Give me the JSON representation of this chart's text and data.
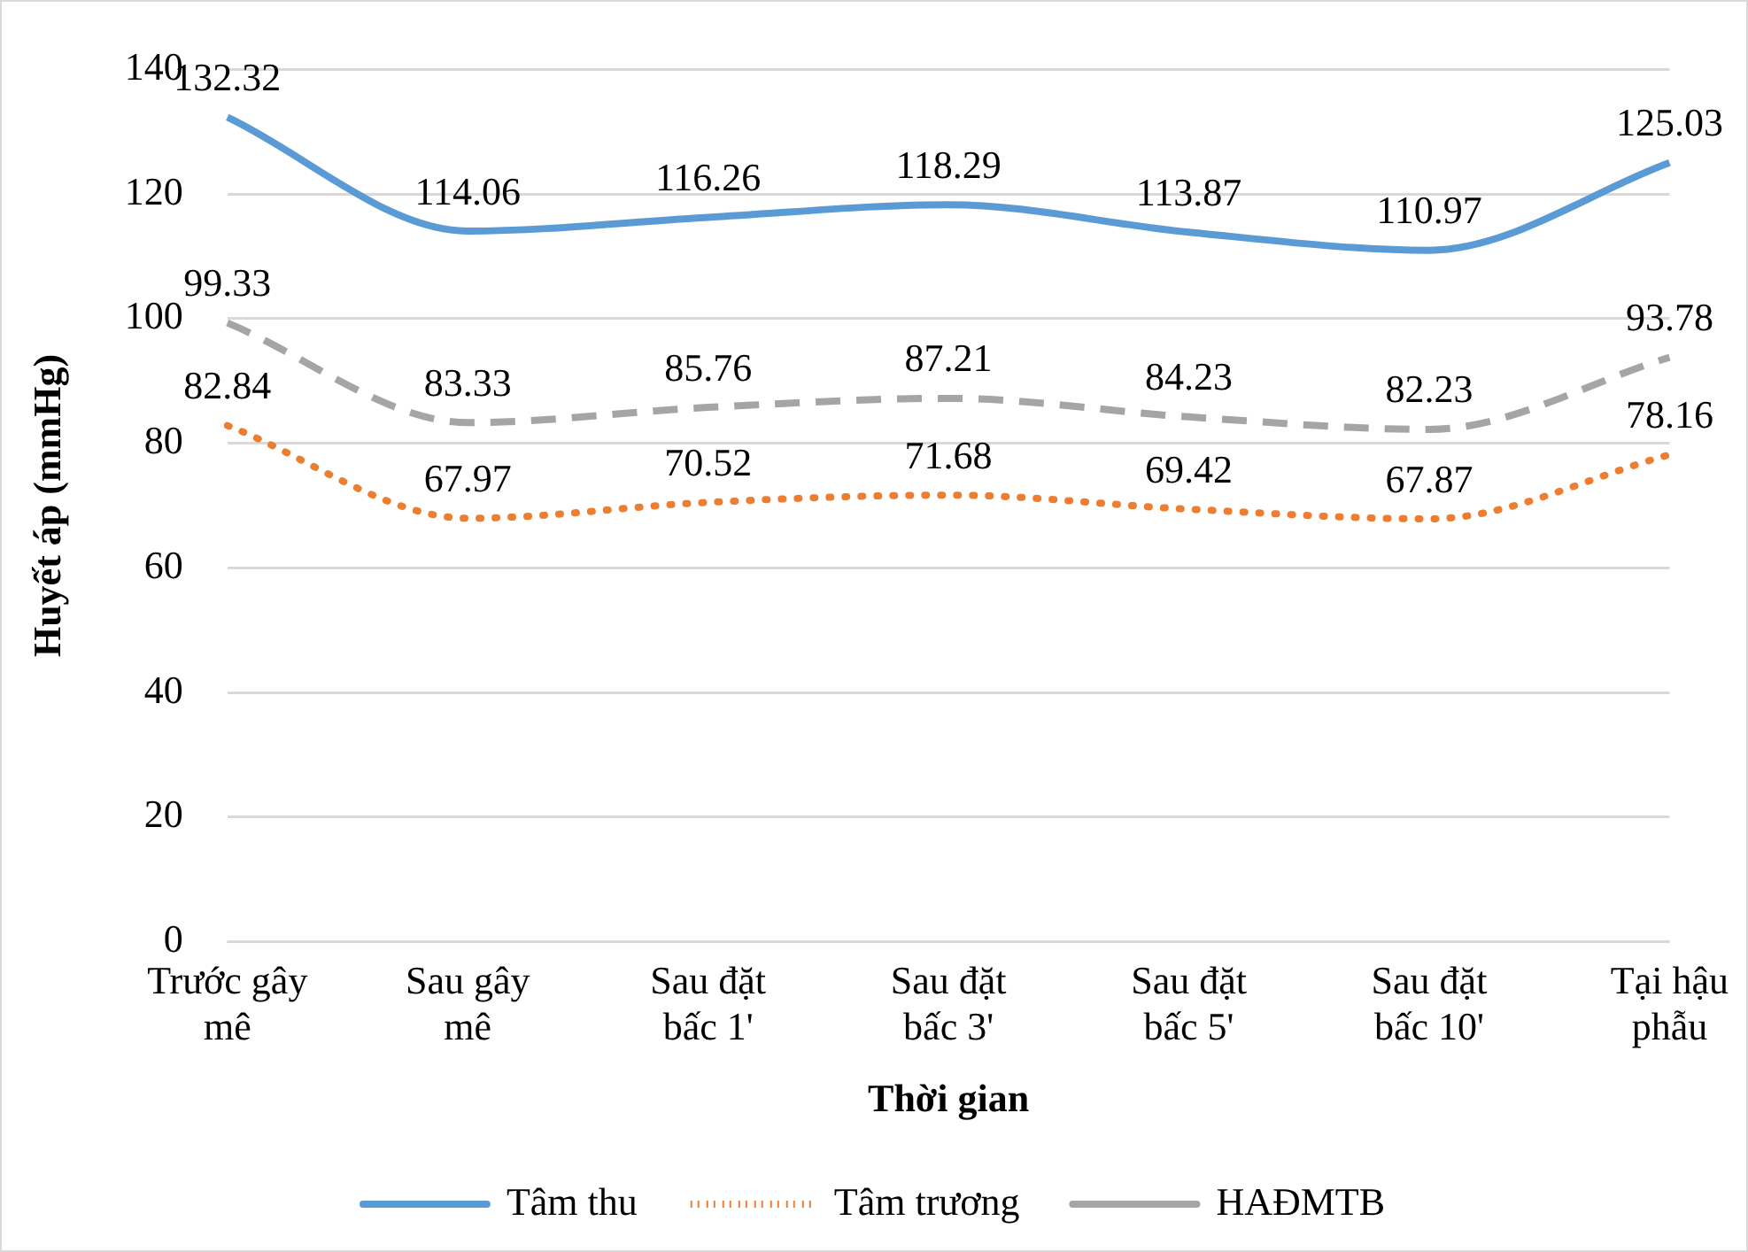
{
  "chart_data": {
    "type": "line",
    "xlabel": "Thời gian",
    "ylabel": "Huyết áp (mmHg)",
    "categories": [
      "Trước gây mê",
      "Sau gây mê",
      "Sau đặt bấc 1'",
      "Sau đặt bấc 3'",
      "Sau đặt bấc 5'",
      "Sau đặt bấc 10'",
      "Tại hậu phẫu"
    ],
    "series": [
      {
        "name": "Tâm thu",
        "color": "#5b9bd5",
        "line_style": "solid",
        "values": [
          132.32,
          114.06,
          116.26,
          118.29,
          113.87,
          110.97,
          125.03
        ]
      },
      {
        "name": "Tâm trương",
        "color": "#ed7d31",
        "line_style": "dotted",
        "values": [
          82.84,
          67.97,
          70.52,
          71.68,
          69.42,
          67.87,
          78.16
        ]
      },
      {
        "name": "HAĐMTB",
        "color": "#a5a5a5",
        "line_style": "dashed",
        "values": [
          99.33,
          83.33,
          85.76,
          87.21,
          84.23,
          82.23,
          93.78
        ]
      }
    ],
    "ylim": [
      0,
      140
    ],
    "yticks": [
      0,
      20,
      40,
      60,
      80,
      100,
      120,
      140
    ],
    "grid": "y",
    "legend": "bottom",
    "marker": "none",
    "data_labels": true
  }
}
